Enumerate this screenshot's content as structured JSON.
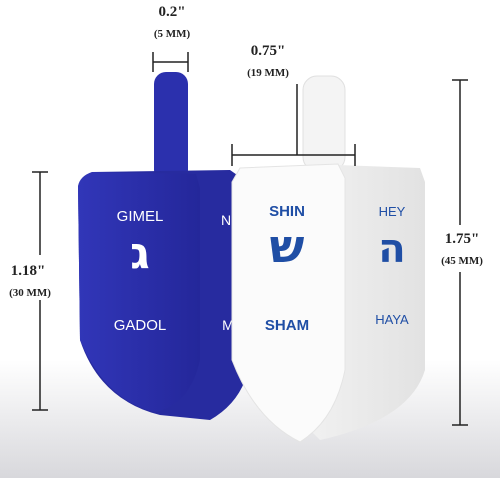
{
  "dimensions": {
    "stem_width": {
      "label": "0.2\"",
      "sublabel": "(5 MM)"
    },
    "body_width": {
      "label": "0.75\"",
      "sublabel": "(19 MM)"
    },
    "total_height": {
      "label": "1.75\"",
      "sublabel": "(45 MM)"
    },
    "body_height": {
      "label": "1.18\"",
      "sublabel": "(30 MM)"
    }
  },
  "blue_dreidel": {
    "front": {
      "name": "GIMEL",
      "letter": "ג",
      "meaning": "GADOL"
    },
    "side": {
      "name": "N",
      "meaning": "M"
    }
  },
  "white_dreidel": {
    "front": {
      "name": "SHIN",
      "letter": "ש",
      "meaning": "SHAM"
    },
    "side": {
      "name": "HEY",
      "letter": "ה",
      "meaning": "HAYA"
    }
  }
}
